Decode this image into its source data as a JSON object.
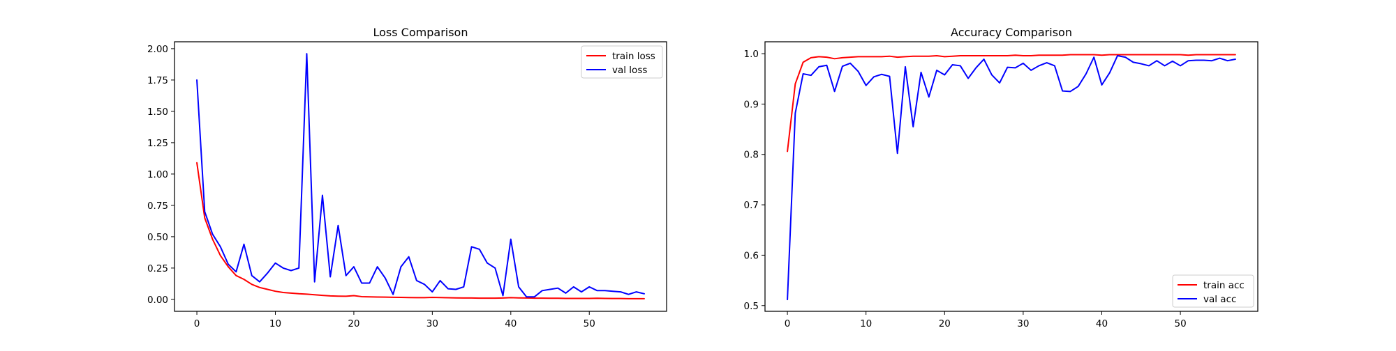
{
  "chart_data": [
    {
      "type": "line",
      "title": "Loss Comparison",
      "xlabel": "",
      "ylabel": "",
      "xlim": [
        -2.85,
        59.85
      ],
      "ylim": [
        -0.095,
        2.055
      ],
      "xticks": [
        0,
        10,
        20,
        30,
        40,
        50
      ],
      "yticks": [
        0.0,
        0.25,
        0.5,
        0.75,
        1.0,
        1.25,
        1.5,
        1.75,
        2.0
      ],
      "ytick_labels": [
        "0.00",
        "0.25",
        "0.50",
        "0.75",
        "1.00",
        "1.25",
        "1.50",
        "1.75",
        "2.00"
      ],
      "grid": false,
      "legend_position": "top-right",
      "series": [
        {
          "name": "train loss",
          "color": "#ff0000",
          "values": [
            1.09,
            0.65,
            0.48,
            0.35,
            0.26,
            0.19,
            0.16,
            0.12,
            0.095,
            0.08,
            0.065,
            0.055,
            0.05,
            0.045,
            0.042,
            0.037,
            0.032,
            0.028,
            0.026,
            0.025,
            0.03,
            0.022,
            0.02,
            0.019,
            0.018,
            0.017,
            0.016,
            0.015,
            0.014,
            0.014,
            0.016,
            0.015,
            0.013,
            0.012,
            0.011,
            0.011,
            0.01,
            0.01,
            0.01,
            0.011,
            0.014,
            0.012,
            0.011,
            0.01,
            0.01,
            0.009,
            0.009,
            0.008,
            0.008,
            0.008,
            0.008,
            0.009,
            0.008,
            0.007,
            0.007,
            0.006,
            0.006,
            0.006
          ]
        },
        {
          "name": "val loss",
          "color": "#0000ff",
          "values": [
            1.75,
            0.7,
            0.52,
            0.42,
            0.28,
            0.22,
            0.44,
            0.19,
            0.14,
            0.21,
            0.29,
            0.25,
            0.23,
            0.25,
            1.96,
            0.14,
            0.83,
            0.18,
            0.59,
            0.19,
            0.26,
            0.13,
            0.13,
            0.26,
            0.17,
            0.04,
            0.26,
            0.34,
            0.15,
            0.12,
            0.06,
            0.15,
            0.085,
            0.08,
            0.1,
            0.42,
            0.4,
            0.29,
            0.25,
            0.03,
            0.48,
            0.1,
            0.02,
            0.02,
            0.07,
            0.08,
            0.09,
            0.05,
            0.1,
            0.06,
            0.1,
            0.07,
            0.07,
            0.065,
            0.06,
            0.04,
            0.06,
            0.045
          ]
        }
      ]
    },
    {
      "type": "line",
      "title": "Accuracy Comparison",
      "xlabel": "",
      "ylabel": "",
      "xlim": [
        -2.85,
        59.85
      ],
      "ylim": [
        0.4886,
        1.0236
      ],
      "xticks": [
        0,
        10,
        20,
        30,
        40,
        50
      ],
      "yticks": [
        0.5,
        0.6,
        0.7,
        0.8,
        0.9,
        1.0
      ],
      "ytick_labels": [
        "0.5",
        "0.6",
        "0.7",
        "0.8",
        "0.9",
        "1.0"
      ],
      "grid": false,
      "legend_position": "bottom-right",
      "series": [
        {
          "name": "train acc",
          "color": "#ff0000",
          "values": [
            0.806,
            0.94,
            0.983,
            0.992,
            0.994,
            0.993,
            0.99,
            0.992,
            0.993,
            0.994,
            0.994,
            0.994,
            0.994,
            0.995,
            0.993,
            0.994,
            0.995,
            0.995,
            0.995,
            0.996,
            0.994,
            0.995,
            0.996,
            0.996,
            0.996,
            0.996,
            0.996,
            0.996,
            0.996,
            0.997,
            0.996,
            0.996,
            0.997,
            0.997,
            0.997,
            0.997,
            0.998,
            0.998,
            0.998,
            0.998,
            0.997,
            0.998,
            0.998,
            0.998,
            0.998,
            0.998,
            0.998,
            0.998,
            0.998,
            0.998,
            0.998,
            0.997,
            0.998,
            0.998,
            0.998,
            0.998,
            0.998,
            0.998
          ]
        },
        {
          "name": "val acc",
          "color": "#0000ff",
          "values": [
            0.512,
            0.882,
            0.96,
            0.957,
            0.974,
            0.977,
            0.925,
            0.975,
            0.981,
            0.965,
            0.937,
            0.954,
            0.959,
            0.955,
            0.802,
            0.974,
            0.855,
            0.963,
            0.914,
            0.967,
            0.958,
            0.978,
            0.976,
            0.951,
            0.972,
            0.989,
            0.958,
            0.942,
            0.973,
            0.972,
            0.981,
            0.967,
            0.976,
            0.982,
            0.976,
            0.926,
            0.925,
            0.935,
            0.96,
            0.993,
            0.938,
            0.962,
            0.996,
            0.993,
            0.983,
            0.98,
            0.976,
            0.986,
            0.976,
            0.985,
            0.976,
            0.986,
            0.987,
            0.987,
            0.986,
            0.991,
            0.986,
            0.989
          ]
        }
      ]
    }
  ]
}
